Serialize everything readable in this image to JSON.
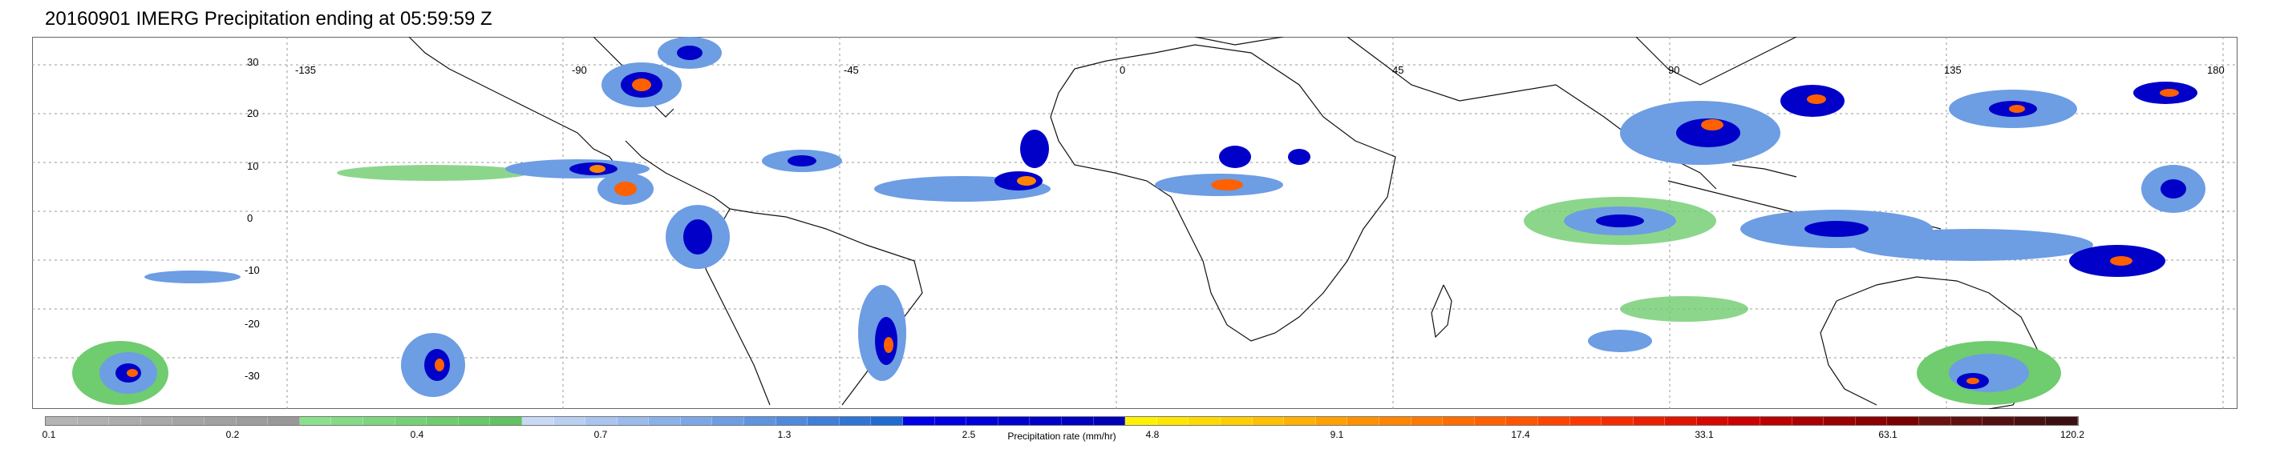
{
  "title": "20160901 IMERG Precipitation ending at 05:59:59 Z",
  "lon_labels": [
    "-135",
    "-90",
    "-45",
    "0",
    "45",
    "90",
    "135",
    "180"
  ],
  "lat_labels": [
    "30",
    "20",
    "10",
    "0",
    "-10",
    "-20",
    "-30"
  ],
  "colorbar": {
    "title": "Precipitation rate (mm/hr)",
    "ticks": [
      "0.1",
      "0.2",
      "0.4",
      "0.7",
      "1.3",
      "2.5",
      "4.8",
      "9.1",
      "17.4",
      "33.1",
      "63.1",
      "120.2"
    ],
    "colors": [
      "#b4b4b4",
      "#b0b0b0",
      "#acacac",
      "#a8a8a8",
      "#a4a4a4",
      "#a0a0a0",
      "#9c9c9c",
      "#989898",
      "#8be08b",
      "#84db84",
      "#7dd67d",
      "#76d176",
      "#6fcc6f",
      "#68c768",
      "#61c261",
      "#c7d9f5",
      "#b8cff2",
      "#a9c5ef",
      "#9abbec",
      "#8bb1e9",
      "#7ca7e6",
      "#6d9de3",
      "#5e93e0",
      "#4f89dd",
      "#3f7fda",
      "#2f75d7",
      "#1f6bd4",
      "#0000e8",
      "#0000e0",
      "#0000d8",
      "#0000d0",
      "#0000c8",
      "#0000c0",
      "#0000b8",
      "#fff200",
      "#ffe600",
      "#ffda00",
      "#ffce00",
      "#ffc000",
      "#ffb000",
      "#ffa000",
      "#ff9000",
      "#ff8400",
      "#ff7800",
      "#ff6c00",
      "#ff6000",
      "#ff5400",
      "#ff4400",
      "#ff3800",
      "#f52c00",
      "#eb2000",
      "#e11400",
      "#d70800",
      "#cc0000",
      "#bc0000",
      "#ac0000",
      "#9c0000",
      "#8c0000",
      "#7c0000",
      "#6c1010",
      "#601010",
      "#541010",
      "#481010",
      "#3c1010"
    ]
  }
}
